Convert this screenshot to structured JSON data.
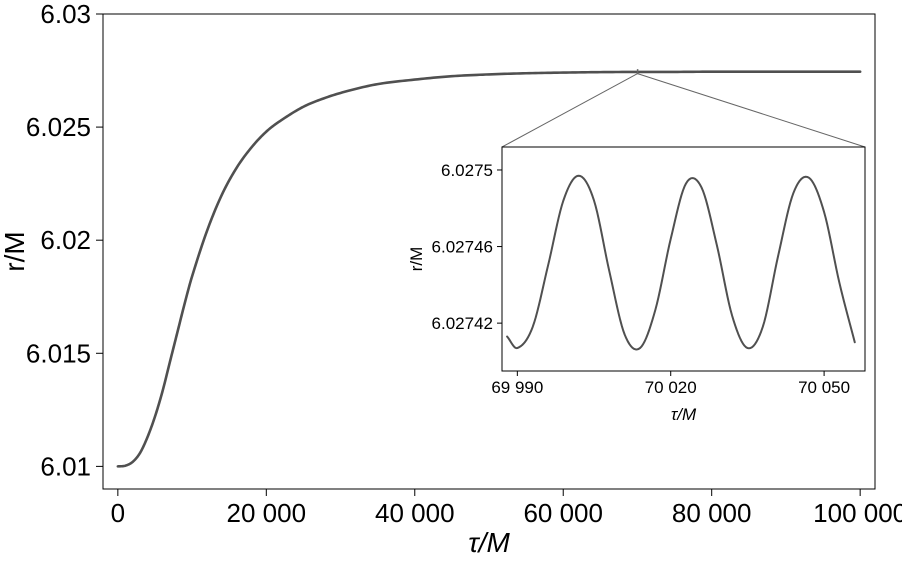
{
  "chart_data": [
    {
      "type": "line",
      "title": "",
      "xlabel": "τ/M",
      "ylabel": "r/M",
      "xlim": [
        -2000,
        102000
      ],
      "ylim": [
        6.009,
        6.03
      ],
      "x_ticks": [
        0,
        20000,
        40000,
        60000,
        80000,
        100000
      ],
      "x_tick_labels": [
        "0",
        "20 000",
        "40 000",
        "60 000",
        "80 000",
        "100 000"
      ],
      "y_ticks": [
        6.01,
        6.015,
        6.02,
        6.025,
        6.03
      ],
      "y_tick_labels": [
        "6.01",
        "6.015",
        "6.02",
        "6.025",
        "6.03"
      ],
      "grid": false,
      "line_color": "#505050",
      "series": [
        {
          "x": [
            0,
            1000,
            2000,
            3000,
            4000,
            5000,
            6000,
            7000,
            8000,
            9000,
            10000,
            12000,
            14000,
            16000,
            18000,
            20000,
            22000,
            25000,
            28000,
            31000,
            35000,
            40000,
            45000,
            50000,
            55000,
            60000,
            65000,
            70000,
            75000,
            80000,
            90000,
            100000
          ],
          "y": [
            6.01,
            6.01003,
            6.0102,
            6.0106,
            6.0113,
            6.0122,
            6.0133,
            6.0146,
            6.0159,
            6.0172,
            6.0184,
            6.0204,
            6.022,
            6.0232,
            6.0241,
            6.0248,
            6.0253,
            6.0259,
            6.0263,
            6.0266,
            6.0269,
            6.0271,
            6.02725,
            6.02733,
            6.02738,
            6.02741,
            6.02743,
            6.02744,
            6.02744,
            6.02745,
            6.02745,
            6.02745
          ]
        }
      ],
      "zoom_box": {
        "x_range": [
          69985,
          70058
        ],
        "y_range": [
          6.02736,
          6.02754
        ]
      }
    },
    {
      "type": "line",
      "title": "",
      "xlabel": "τ/M",
      "ylabel": "r/M",
      "xlim": [
        69987,
        70058
      ],
      "ylim": [
        6.027395,
        6.027512
      ],
      "x_ticks": [
        69990,
        70020,
        70050
      ],
      "x_tick_labels": [
        "69 990",
        "70 020",
        "70 050"
      ],
      "y_ticks": [
        6.02742,
        6.02746,
        6.0275
      ],
      "y_tick_labels": [
        "6.02742",
        "6.02746",
        "6.0275"
      ],
      "grid": false,
      "line_color": "#505050",
      "series": [
        {
          "x": [
            69988,
            69990,
            69993,
            69996,
            69999,
            70002,
            70005,
            70008,
            70011,
            70014,
            70017,
            70020,
            70023,
            70026,
            70029,
            70032,
            70035,
            70038,
            70041,
            70044,
            70047,
            70050,
            70053,
            70056
          ],
          "y": [
            6.027413,
            6.027407,
            6.027418,
            6.02745,
            6.027484,
            6.027497,
            6.027484,
            6.027447,
            6.027414,
            6.027407,
            6.027427,
            6.027464,
            6.027493,
            6.027491,
            6.027461,
            6.027424,
            6.027407,
            6.027418,
            6.027455,
            6.027488,
            6.027496,
            6.027478,
            6.027441,
            6.02741
          ]
        }
      ]
    }
  ]
}
